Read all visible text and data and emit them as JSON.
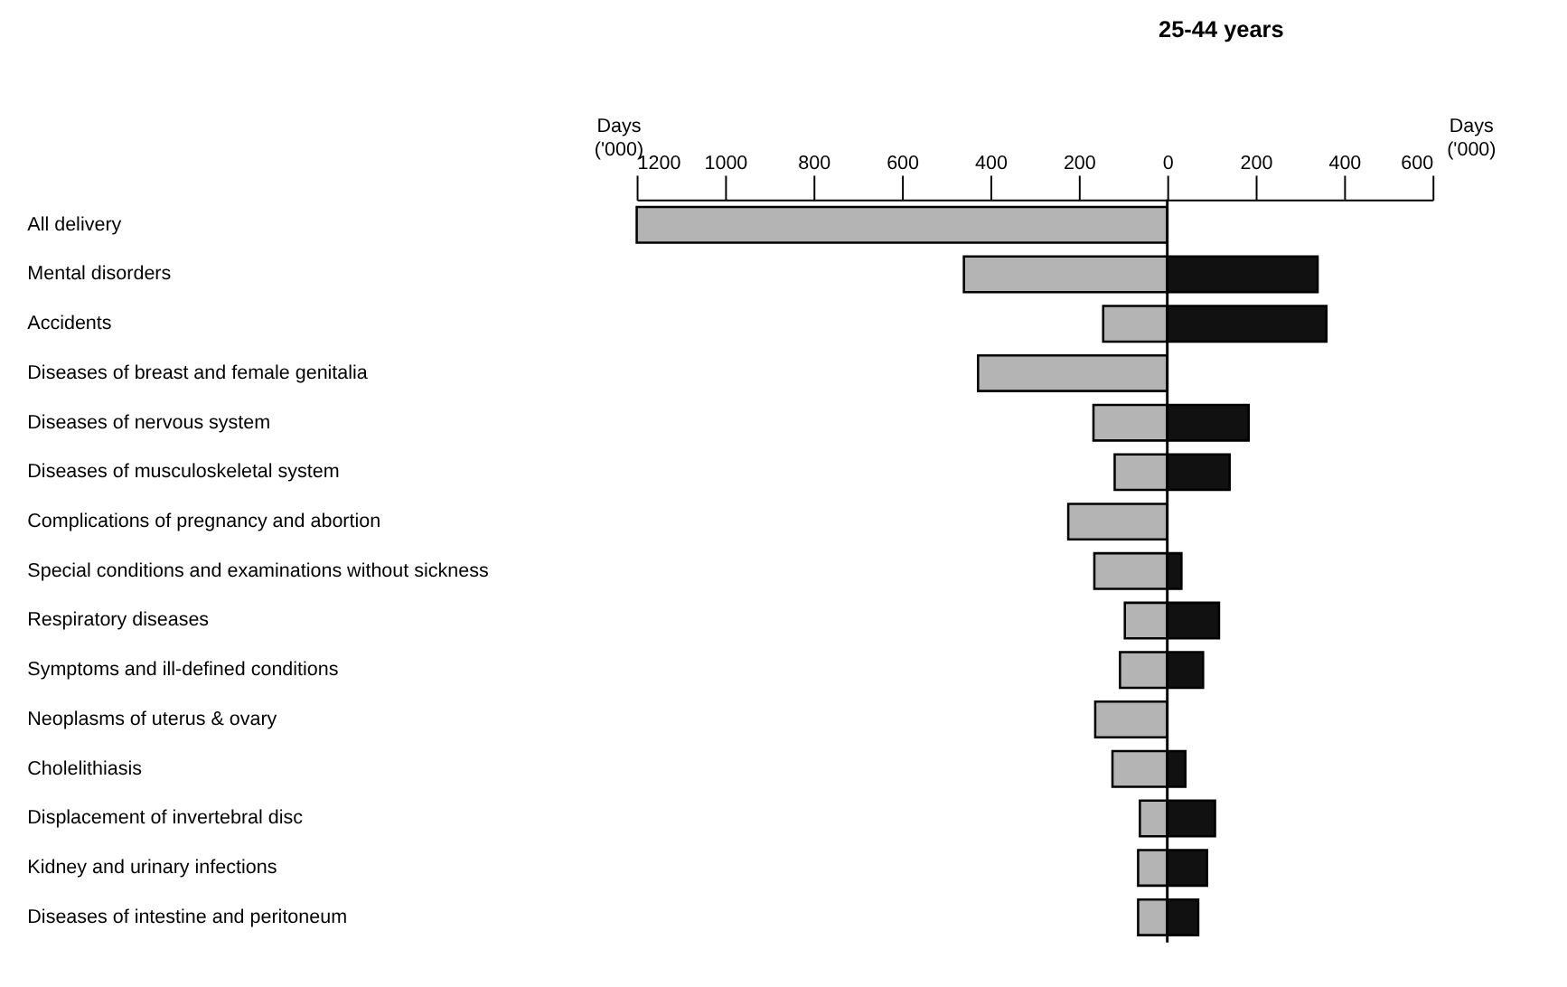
{
  "chart_data": {
    "type": "bar",
    "orientation": "horizontal",
    "title": "25-44 years",
    "xlabel": "Days ('000)",
    "annotations": [
      "Days ('000)"
    ],
    "categories": [
      "All delivery",
      "Mental disorders",
      "Accidents",
      "Diseases of breast and female genitalia",
      "Diseases of nervous system",
      "Diseases of musculoskeletal system",
      "Complications of pregnancy and abortion",
      "Special conditions and examinations without sickness",
      "Respiratory diseases",
      "Symptoms and ill-defined conditions",
      "Neoplasms of uterus & ovary",
      "Cholelithiasis",
      "Displacement of invertebral disc",
      "Kidney and urinary infections",
      "Diseases of intestine and peritoneum"
    ],
    "series": [
      {
        "color": "#b4b4b4",
        "values": [
          -1200,
          -460,
          -145,
          -428,
          -167,
          -119,
          -224,
          -165,
          -96,
          -107,
          -163,
          -124,
          -62,
          -66,
          -66
        ]
      },
      {
        "color": "#111111",
        "values": [
          null,
          340,
          360,
          null,
          184,
          141,
          null,
          32,
          117,
          81,
          null,
          41,
          108,
          90,
          70
        ]
      }
    ],
    "xlim": [
      -1200,
      600
    ],
    "xticks": [
      {
        "value": -1200,
        "label": "1200"
      },
      {
        "value": -1000,
        "label": "1000"
      },
      {
        "value": -800,
        "label": "800"
      },
      {
        "value": -600,
        "label": "600"
      },
      {
        "value": -400,
        "label": "400"
      },
      {
        "value": -200,
        "label": "200"
      },
      0,
      200,
      400,
      600
    ],
    "ref_lines": [
      {
        "axis": "x",
        "value": 0,
        "color": "#000000"
      }
    ],
    "stacked": true,
    "grid": false,
    "legend": false
  }
}
